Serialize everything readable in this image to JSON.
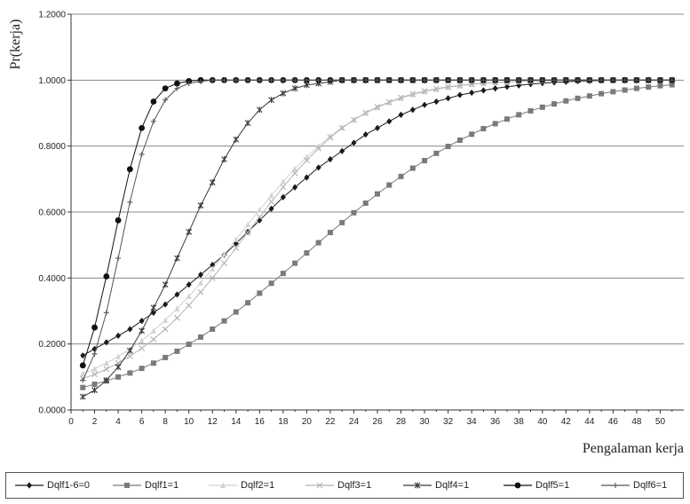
{
  "chart_data": {
    "type": "line",
    "ylabel": "Pr(kerja)",
    "xlabel": "Pengalaman kerja",
    "ylim": [
      0,
      1.2
    ],
    "xlim": [
      0,
      52
    ],
    "y_ticks": [
      "0.0000",
      "0.2000",
      "0.4000",
      "0.6000",
      "0.8000",
      "1.0000",
      "1.2000"
    ],
    "x_ticks": [
      "0",
      "2",
      "4",
      "6",
      "8",
      "10",
      "12",
      "14",
      "16",
      "18",
      "20",
      "22",
      "24",
      "26",
      "28",
      "30",
      "32",
      "34",
      "36",
      "38",
      "40",
      "42",
      "44",
      "46",
      "48",
      "50"
    ],
    "grid": "horizontal",
    "legend_position": "bottom",
    "series": [
      {
        "name": "Dqlf1-6=0",
        "color": "#1a1a1a",
        "marker": "diamond",
        "x": [
          1,
          2,
          3,
          4,
          5,
          6,
          7,
          8,
          9,
          10,
          11,
          12,
          13,
          14,
          15,
          16,
          17,
          18,
          19,
          20,
          21,
          22,
          23,
          24,
          25,
          26,
          27,
          28,
          29,
          30,
          31,
          32,
          33,
          34,
          35,
          36,
          37,
          38,
          39,
          40,
          41,
          42,
          43,
          44,
          45,
          46,
          47,
          48,
          49,
          50,
          51
        ],
        "values": [
          0.165,
          0.185,
          0.205,
          0.225,
          0.245,
          0.27,
          0.295,
          0.32,
          0.35,
          0.38,
          0.41,
          0.44,
          0.47,
          0.505,
          0.54,
          0.575,
          0.61,
          0.645,
          0.675,
          0.705,
          0.735,
          0.76,
          0.785,
          0.81,
          0.835,
          0.855,
          0.875,
          0.895,
          0.91,
          0.925,
          0.935,
          0.945,
          0.955,
          0.962,
          0.969,
          0.975,
          0.98,
          0.984,
          0.988,
          0.991,
          0.993,
          0.995,
          0.997,
          0.998,
          0.999,
          1.0,
          1.0,
          1.0,
          1.0,
          1.0,
          1.0
        ]
      },
      {
        "name": "Dqlf1=1",
        "color": "#7a7a7a",
        "marker": "square",
        "x": [
          1,
          2,
          3,
          4,
          5,
          6,
          7,
          8,
          9,
          10,
          11,
          12,
          13,
          14,
          15,
          16,
          17,
          18,
          19,
          20,
          21,
          22,
          23,
          24,
          25,
          26,
          27,
          28,
          29,
          30,
          31,
          32,
          33,
          34,
          35,
          36,
          37,
          38,
          39,
          40,
          41,
          42,
          43,
          44,
          45,
          46,
          47,
          48,
          49,
          50,
          51
        ],
        "values": [
          0.068,
          0.078,
          0.088,
          0.1,
          0.112,
          0.126,
          0.142,
          0.159,
          0.178,
          0.199,
          0.221,
          0.245,
          0.27,
          0.297,
          0.325,
          0.354,
          0.384,
          0.414,
          0.445,
          0.476,
          0.507,
          0.538,
          0.568,
          0.598,
          0.627,
          0.655,
          0.682,
          0.708,
          0.733,
          0.756,
          0.778,
          0.799,
          0.818,
          0.836,
          0.853,
          0.868,
          0.882,
          0.895,
          0.907,
          0.918,
          0.928,
          0.937,
          0.945,
          0.952,
          0.959,
          0.965,
          0.97,
          0.975,
          0.979,
          0.983,
          0.986
        ]
      },
      {
        "name": "Dqlf2=1",
        "color": "#d2d2d2",
        "marker": "triangle",
        "x": [
          1,
          2,
          3,
          4,
          5,
          6,
          7,
          8,
          9,
          10,
          11,
          12,
          13,
          14,
          15,
          16,
          17,
          18,
          19,
          20,
          21,
          22,
          23,
          24,
          25,
          26,
          27,
          28,
          29,
          30,
          31,
          32,
          33,
          34,
          35,
          36,
          37,
          38,
          39,
          40,
          41,
          42,
          43,
          44,
          45,
          46,
          47,
          48,
          49,
          50,
          51
        ],
        "values": [
          0.11,
          0.125,
          0.142,
          0.162,
          0.185,
          0.21,
          0.24,
          0.272,
          0.307,
          0.345,
          0.385,
          0.428,
          0.472,
          0.517,
          0.562,
          0.607,
          0.65,
          0.692,
          0.731,
          0.767,
          0.8,
          0.83,
          0.856,
          0.879,
          0.9,
          0.917,
          0.932,
          0.945,
          0.956,
          0.965,
          0.972,
          0.978,
          0.983,
          0.987,
          0.99,
          0.992,
          0.994,
          0.996,
          0.997,
          0.998,
          0.999,
          1.0,
          1.0,
          1.0,
          1.0,
          1.0,
          1.0,
          1.0,
          1.0,
          1.0,
          1.0
        ]
      },
      {
        "name": "Dqlf3=1",
        "color": "#b4b4b4",
        "marker": "x",
        "x": [
          1,
          2,
          3,
          4,
          5,
          6,
          7,
          8,
          9,
          10,
          11,
          12,
          13,
          14,
          15,
          16,
          17,
          18,
          19,
          20,
          21,
          22,
          23,
          24,
          25,
          26,
          27,
          28,
          29,
          30,
          31,
          32,
          33,
          34,
          35,
          36,
          37,
          38,
          39,
          40,
          41,
          42,
          43,
          44,
          45,
          46,
          47,
          48,
          49,
          50,
          51
        ],
        "values": [
          0.095,
          0.108,
          0.124,
          0.142,
          0.163,
          0.187,
          0.214,
          0.245,
          0.279,
          0.317,
          0.357,
          0.4,
          0.445,
          0.491,
          0.538,
          0.585,
          0.631,
          0.676,
          0.718,
          0.757,
          0.793,
          0.826,
          0.855,
          0.88,
          0.901,
          0.919,
          0.934,
          0.947,
          0.958,
          0.967,
          0.974,
          0.98,
          0.984,
          0.988,
          0.991,
          0.993,
          0.995,
          0.996,
          0.997,
          0.998,
          0.999,
          1.0,
          1.0,
          1.0,
          1.0,
          1.0,
          1.0,
          1.0,
          1.0,
          1.0,
          1.0
        ]
      },
      {
        "name": "Dqlf4=1",
        "color": "#3a3a3a",
        "marker": "star",
        "x": [
          1,
          2,
          3,
          4,
          5,
          6,
          7,
          8,
          9,
          10,
          11,
          12,
          13,
          14,
          15,
          16,
          17,
          18,
          19,
          20,
          21,
          22,
          23,
          24,
          25,
          26,
          27,
          28,
          29,
          30,
          31,
          32,
          33,
          34,
          35,
          36,
          37,
          38,
          39,
          40,
          41,
          42,
          43,
          44,
          45,
          46,
          47,
          48,
          49,
          50,
          51
        ],
        "values": [
          0.04,
          0.06,
          0.09,
          0.13,
          0.18,
          0.24,
          0.31,
          0.38,
          0.46,
          0.54,
          0.62,
          0.69,
          0.76,
          0.82,
          0.87,
          0.91,
          0.94,
          0.96,
          0.975,
          0.985,
          0.99,
          0.995,
          1.0,
          1.0,
          1.0,
          1.0,
          1.0,
          1.0,
          1.0,
          1.0,
          1.0,
          1.0,
          1.0,
          1.0,
          1.0,
          1.0,
          1.0,
          1.0,
          1.0,
          1.0,
          1.0,
          1.0,
          1.0,
          1.0,
          1.0,
          1.0,
          1.0,
          1.0,
          1.0,
          1.0,
          1.0
        ]
      },
      {
        "name": "Dqlf5=1",
        "color": "#111111",
        "marker": "circle",
        "x": [
          1,
          2,
          3,
          4,
          5,
          6,
          7,
          8,
          9,
          10,
          11,
          12,
          13,
          14,
          15,
          16,
          17,
          18,
          19,
          20,
          21,
          22,
          23,
          24,
          25,
          26,
          27,
          28,
          29,
          30,
          31,
          32,
          33,
          34,
          35,
          36,
          37,
          38,
          39,
          40,
          41,
          42,
          43,
          44,
          45,
          46,
          47,
          48,
          49,
          50,
          51
        ],
        "values": [
          0.135,
          0.25,
          0.405,
          0.575,
          0.73,
          0.855,
          0.935,
          0.975,
          0.99,
          0.997,
          1.0,
          1.0,
          1.0,
          1.0,
          1.0,
          1.0,
          1.0,
          1.0,
          1.0,
          1.0,
          1.0,
          1.0,
          1.0,
          1.0,
          1.0,
          1.0,
          1.0,
          1.0,
          1.0,
          1.0,
          1.0,
          1.0,
          1.0,
          1.0,
          1.0,
          1.0,
          1.0,
          1.0,
          1.0,
          1.0,
          1.0,
          1.0,
          1.0,
          1.0,
          1.0,
          1.0,
          1.0,
          1.0,
          1.0,
          1.0,
          1.0
        ]
      },
      {
        "name": "Dqlf6=1",
        "color": "#555555",
        "marker": "plus",
        "x": [
          1,
          2,
          3,
          4,
          5,
          6,
          7,
          8,
          9,
          10,
          11,
          12,
          13,
          14,
          15,
          16,
          17,
          18,
          19,
          20,
          21,
          22,
          23,
          24,
          25,
          26,
          27,
          28,
          29,
          30,
          31,
          32,
          33,
          34,
          35,
          36,
          37,
          38,
          39,
          40,
          41,
          42,
          43,
          44,
          45,
          46,
          47,
          48,
          49,
          50,
          51
        ],
        "values": [
          0.09,
          0.17,
          0.295,
          0.46,
          0.63,
          0.775,
          0.875,
          0.94,
          0.975,
          0.99,
          0.996,
          1.0,
          1.0,
          1.0,
          1.0,
          1.0,
          1.0,
          1.0,
          1.0,
          1.0,
          1.0,
          1.0,
          1.0,
          1.0,
          1.0,
          1.0,
          1.0,
          1.0,
          1.0,
          1.0,
          1.0,
          1.0,
          1.0,
          1.0,
          1.0,
          1.0,
          1.0,
          1.0,
          1.0,
          1.0,
          1.0,
          1.0,
          1.0,
          1.0,
          1.0,
          1.0,
          1.0,
          1.0,
          1.0,
          1.0,
          1.0
        ]
      }
    ]
  }
}
